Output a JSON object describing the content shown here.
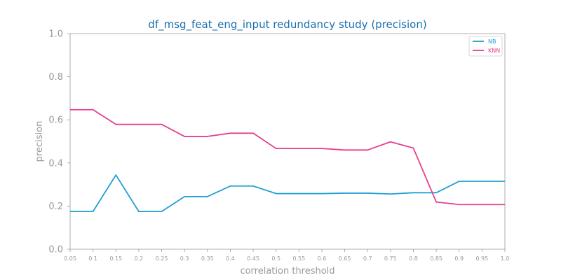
{
  "chart_data": {
    "type": "line",
    "title": "df_msg_feat_eng_input redundancy study (precision)",
    "xlabel": "correlation threshold",
    "ylabel": "precision",
    "x": [
      0.05,
      0.1,
      0.15,
      0.2,
      0.25,
      0.3,
      0.35,
      0.4,
      0.45,
      0.5,
      0.55,
      0.6,
      0.65,
      0.7,
      0.75,
      0.8,
      0.85,
      0.9,
      0.95,
      1.0
    ],
    "x_tick_labels": [
      "0.05",
      "0.1",
      "0.15",
      "0.2",
      "0.25",
      "0.3",
      "0.35",
      "0.4",
      "0.45",
      "0.5",
      "0.55",
      "0.6",
      "0.65",
      "0.7",
      "0.75",
      "0.8",
      "0.85",
      "0.9",
      "0.95",
      "1.0"
    ],
    "ylim": [
      0.0,
      1.0
    ],
    "y_ticks": [
      0.0,
      0.2,
      0.4,
      0.6,
      0.8,
      1.0
    ],
    "y_tick_labels": [
      "0.0",
      "0.2",
      "0.4",
      "0.6",
      "0.8",
      "1.0"
    ],
    "grid": false,
    "legend_position": "top-right",
    "series": [
      {
        "name": "NB",
        "color": "#1f9fd4",
        "values": [
          0.175,
          0.175,
          0.344,
          0.175,
          0.175,
          0.244,
          0.244,
          0.293,
          0.293,
          0.258,
          0.258,
          0.258,
          0.26,
          0.26,
          0.256,
          0.262,
          0.262,
          0.315,
          0.315,
          0.315
        ]
      },
      {
        "name": "KNN",
        "color": "#e83e8c",
        "values": [
          0.647,
          0.647,
          0.579,
          0.579,
          0.579,
          0.523,
          0.523,
          0.538,
          0.538,
          0.467,
          0.467,
          0.467,
          0.46,
          0.46,
          0.498,
          0.469,
          0.219,
          0.207,
          0.207,
          0.207
        ]
      }
    ]
  }
}
